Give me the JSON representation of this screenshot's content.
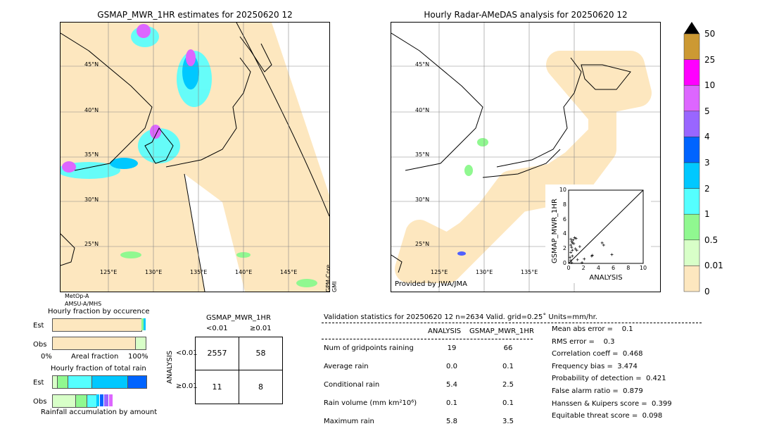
{
  "left_map": {
    "title": "GSMAP_MWR_1HR estimates for 20250620 12",
    "lat_labels": [
      "45°N",
      "40°N",
      "35°N",
      "30°N",
      "25°N"
    ],
    "lon_labels": [
      "125°E",
      "130°E",
      "135°E",
      "140°E",
      "145°E"
    ],
    "sensor_left": [
      "MetOp-A",
      "AMSU-A/MHS"
    ],
    "sensor_right": [
      "GPM-Core",
      "GMI"
    ]
  },
  "right_map": {
    "title": "Hourly Radar-AMeDAS analysis for 20250620 12",
    "lat_labels": [
      "45°N",
      "40°N",
      "35°N",
      "30°N",
      "25°N"
    ],
    "lon_labels": [
      "125°E",
      "130°E",
      "135°E"
    ],
    "credit": "Provided by JWA/JMA"
  },
  "colorbar": {
    "labels": [
      "50",
      "25",
      "10",
      "5",
      "4",
      "3",
      "2",
      "1",
      "0.5",
      "0.01",
      "0"
    ],
    "colors": [
      "#cc9933",
      "#ff00ff",
      "#dd66ff",
      "#9966ff",
      "#0064ff",
      "#00c8ff",
      "#55ffff",
      "#90f890",
      "#d8ffc8",
      "#fde7bf"
    ],
    "extend_color": "#000000"
  },
  "chart_data": {
    "type": "scatter",
    "xlabel": "ANALYSIS",
    "ylabel": "GSMAP_MWR_1HR",
    "xlim": [
      0,
      10
    ],
    "ylim": [
      0,
      10
    ],
    "ticks": [
      "0",
      "2",
      "4",
      "6",
      "8",
      "10"
    ],
    "points": [
      [
        0.3,
        3.3
      ],
      [
        0.4,
        3.0
      ],
      [
        0.5,
        2.8
      ],
      [
        0.3,
        2.5
      ],
      [
        0.4,
        2.2
      ],
      [
        0.5,
        1.8
      ],
      [
        0.3,
        1.5
      ],
      [
        0.6,
        3.2
      ],
      [
        0.8,
        3.5
      ],
      [
        1.0,
        3.4
      ],
      [
        0.7,
        2.7
      ],
      [
        0.9,
        2.0
      ],
      [
        1.1,
        1.8
      ],
      [
        1.5,
        2.3
      ],
      [
        1.2,
        0.5
      ],
      [
        2.1,
        0.6
      ],
      [
        3.1,
        1.0
      ],
      [
        3.2,
        1.1
      ],
      [
        4.5,
        2.8
      ],
      [
        4.7,
        2.5
      ],
      [
        5.8,
        1.2
      ],
      [
        0.2,
        0.8
      ],
      [
        0.3,
        0.4
      ],
      [
        0.5,
        1.0
      ],
      [
        0.4,
        0.1
      ],
      [
        1.8,
        0.1
      ]
    ]
  },
  "occurrence": {
    "title": "Hourly fraction by occurence",
    "rows": [
      "Est",
      "Obs"
    ],
    "xlabel": "Areal fraction",
    "x0": "0%",
    "x1": "100%"
  },
  "total_rain": {
    "title": "Hourly fraction of total rain",
    "rows": [
      "Est",
      "Obs"
    ],
    "footer": "Rainfall accumulation by amount"
  },
  "contingency": {
    "title": "GSMAP_MWR_1HR",
    "cols": [
      "<0.01",
      "≥0.01"
    ],
    "rows": [
      "<0.01",
      "≥0.01"
    ],
    "ylabel": "ANALYSIS",
    "values": [
      [
        "2557",
        "58"
      ],
      [
        "11",
        "8"
      ]
    ]
  },
  "stats": {
    "header": "Validation statistics for 20250620 12  n=2634 Valid. grid=0.25˚ Units=mm/hr.",
    "col1": "ANALYSIS",
    "col2": "GSMAP_MWR_1HR",
    "rows": [
      {
        "label": "Num of gridpoints raining",
        "a": "19",
        "b": "66"
      },
      {
        "label": "Average rain",
        "a": "0.0",
        "b": "0.1"
      },
      {
        "label": "Conditional rain",
        "a": "5.4",
        "b": "2.5"
      },
      {
        "label": "Rain volume (mm km²10⁶)",
        "a": "0.1",
        "b": "0.1"
      },
      {
        "label": "Maximum rain",
        "a": "5.8",
        "b": "3.5"
      }
    ],
    "scores": [
      "Mean abs error =    0.1",
      "RMS error =    0.3",
      "Correlation coeff =  0.468",
      "Frequency bias =  3.474",
      "Probability of detection =  0.421",
      "False alarm ratio =  0.879",
      "Hanssen & Kuipers score =  0.399",
      "Equitable threat score =  0.098"
    ]
  }
}
